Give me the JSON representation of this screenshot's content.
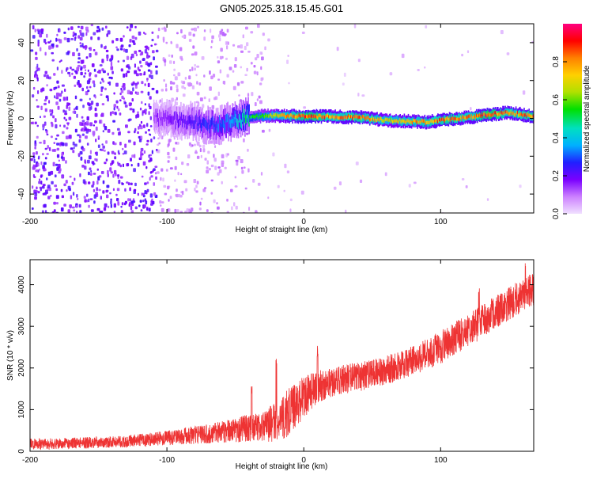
{
  "title": "GN05.2025.318.15.45.G01",
  "colors": {
    "line": "#ee3333",
    "axis": "#000000",
    "spectral_dots": "#5b00d6",
    "tail": "#a070ff"
  },
  "chart_data": [
    {
      "id": "spectrogram",
      "type": "heatmap",
      "xlabel": "Height of straight line (km)",
      "ylabel": "Frequency (Hz)",
      "xlim": [
        -200,
        168
      ],
      "ylim": [
        -50,
        50
      ],
      "xticks": [
        -200,
        -100,
        0,
        100
      ],
      "yticks": [
        -40,
        -20,
        0,
        20,
        40
      ],
      "colorbar": {
        "label": "Normalized spectral amplitude",
        "range": [
          0,
          1
        ],
        "ticks": [
          0.0,
          0.2,
          0.4,
          0.6,
          0.8
        ],
        "colormap": [
          "#f0e0ff",
          "#cc80ff",
          "#7a00ff",
          "#2020ff",
          "#00b0ff",
          "#00e0c0",
          "#00e000",
          "#b0e000",
          "#ffd000",
          "#ff8000",
          "#ff0000",
          "#ff0080"
        ]
      },
      "ridge": [
        {
          "x": -110,
          "f": 0,
          "a": 0.15
        },
        {
          "x": -90,
          "f": -1,
          "a": 0.2
        },
        {
          "x": -78,
          "f": -2,
          "a": 0.25
        },
        {
          "x": -65,
          "f": -4,
          "a": 0.3
        },
        {
          "x": -55,
          "f": -2,
          "a": 0.35
        },
        {
          "x": -45,
          "f": 0,
          "a": 0.45
        },
        {
          "x": -35,
          "f": 1,
          "a": 0.55
        },
        {
          "x": -20,
          "f": 1.5,
          "a": 0.7
        },
        {
          "x": -5,
          "f": 1,
          "a": 0.85
        },
        {
          "x": 5,
          "f": 1,
          "a": 0.9
        },
        {
          "x": 20,
          "f": 1,
          "a": 0.8
        },
        {
          "x": 40,
          "f": 0.5,
          "a": 0.85
        },
        {
          "x": 60,
          "f": -1,
          "a": 0.7
        },
        {
          "x": 75,
          "f": -1.5,
          "a": 0.75
        },
        {
          "x": 90,
          "f": -2,
          "a": 0.8
        },
        {
          "x": 105,
          "f": -0.5,
          "a": 0.85
        },
        {
          "x": 120,
          "f": 0.5,
          "a": 0.8
        },
        {
          "x": 135,
          "f": 2,
          "a": 0.9
        },
        {
          "x": 150,
          "f": 3,
          "a": 0.8
        },
        {
          "x": 168,
          "f": 1,
          "a": 0.85
        }
      ]
    },
    {
      "id": "snr",
      "type": "line",
      "xlabel": "Height of straight line (km)",
      "ylabel": "SNR (10 * v/v)",
      "xlim": [
        -200,
        168
      ],
      "ylim": [
        0,
        4600
      ],
      "xticks": [
        -200,
        -100,
        0,
        100
      ],
      "yticks": [
        0,
        1000,
        2000,
        3000,
        4000
      ],
      "x": [
        -200,
        -175,
        -150,
        -125,
        -100,
        -75,
        -50,
        -30,
        -20,
        -10,
        0,
        10,
        25,
        50,
        75,
        100,
        125,
        150,
        168
      ],
      "y_mean": [
        170,
        190,
        210,
        250,
        320,
        400,
        520,
        600,
        700,
        950,
        1300,
        1550,
        1700,
        1850,
        2100,
        2500,
        3000,
        3550,
        3900
      ],
      "y_noise": [
        130,
        130,
        140,
        150,
        180,
        220,
        300,
        350,
        500,
        600,
        500,
        400,
        350,
        350,
        350,
        400,
        400,
        400,
        400
      ],
      "peaks": [
        {
          "x": -38,
          "y": 1600
        },
        {
          "x": -20,
          "y": 2300
        },
        {
          "x": 10,
          "y": 2550
        },
        {
          "x": 128,
          "y": 4350
        },
        {
          "x": 162,
          "y": 4550
        }
      ]
    }
  ]
}
